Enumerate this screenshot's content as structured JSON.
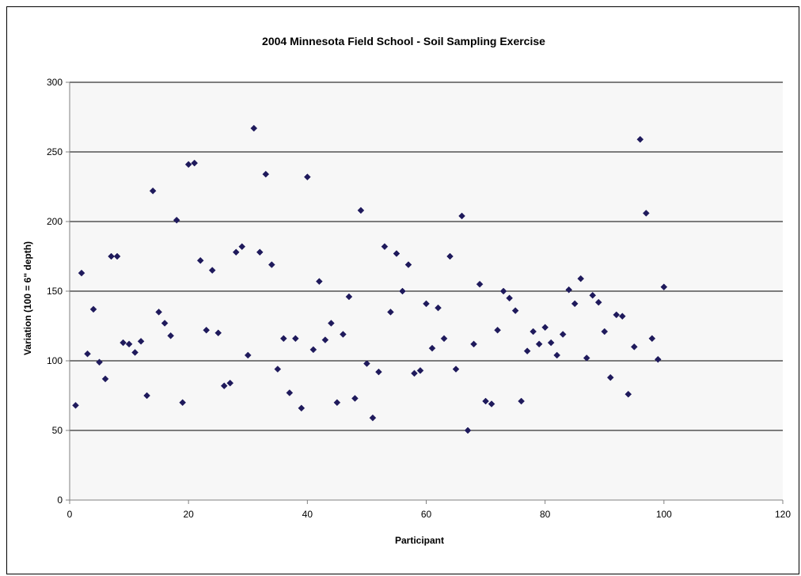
{
  "chart_data": {
    "type": "scatter",
    "title": "2004 Minnesota Field School - Soil Sampling Exercise",
    "xlabel": "Participant",
    "ylabel": "Variation (100 = 6\" depth)",
    "xlim": [
      0,
      120
    ],
    "ylim": [
      0,
      300
    ],
    "xticks": [
      0,
      20,
      40,
      60,
      80,
      100,
      120
    ],
    "yticks": [
      0,
      50,
      100,
      150,
      200,
      250,
      300
    ],
    "grid": "horizontal",
    "legend": "none",
    "plot_background": "#f7f7f7",
    "marker_color": "#1f1a5c",
    "marker_shape": "diamond",
    "x": [
      1,
      2,
      3,
      4,
      5,
      6,
      7,
      8,
      9,
      10,
      11,
      12,
      13,
      14,
      15,
      16,
      17,
      18,
      19,
      20,
      21,
      22,
      23,
      24,
      25,
      26,
      27,
      28,
      29,
      30,
      31,
      32,
      33,
      34,
      35,
      36,
      37,
      38,
      39,
      40,
      41,
      42,
      43,
      44,
      45,
      46,
      47,
      48,
      49,
      50,
      51,
      52,
      53,
      54,
      55,
      56,
      57,
      58,
      59,
      60,
      61,
      62,
      63,
      64,
      65,
      66,
      67,
      68,
      69,
      70,
      71,
      72,
      73,
      74,
      75,
      76,
      77,
      78,
      79,
      80,
      81,
      82,
      83,
      84,
      85,
      86,
      87,
      88,
      89,
      90,
      91,
      92,
      93,
      94,
      95,
      96,
      97,
      98,
      99,
      100
    ],
    "y": [
      68,
      163,
      105,
      137,
      99,
      87,
      175,
      175,
      113,
      112,
      106,
      114,
      75,
      222,
      135,
      127,
      118,
      201,
      70,
      241,
      242,
      172,
      122,
      165,
      120,
      82,
      84,
      178,
      182,
      104,
      267,
      178,
      234,
      169,
      94,
      116,
      77,
      116,
      66,
      232,
      108,
      157,
      115,
      127,
      70,
      119,
      146,
      73,
      208,
      98,
      59,
      92,
      182,
      135,
      177,
      150,
      169,
      91,
      93,
      141,
      109,
      138,
      116,
      175,
      94,
      204,
      50,
      112,
      155,
      71,
      69,
      122,
      150,
      145,
      136,
      71,
      107,
      121,
      112,
      124,
      113,
      104,
      119,
      151,
      141,
      159,
      102,
      147,
      142,
      121,
      88,
      133,
      132,
      76,
      110,
      259,
      206,
      116,
      101,
      153
    ]
  }
}
